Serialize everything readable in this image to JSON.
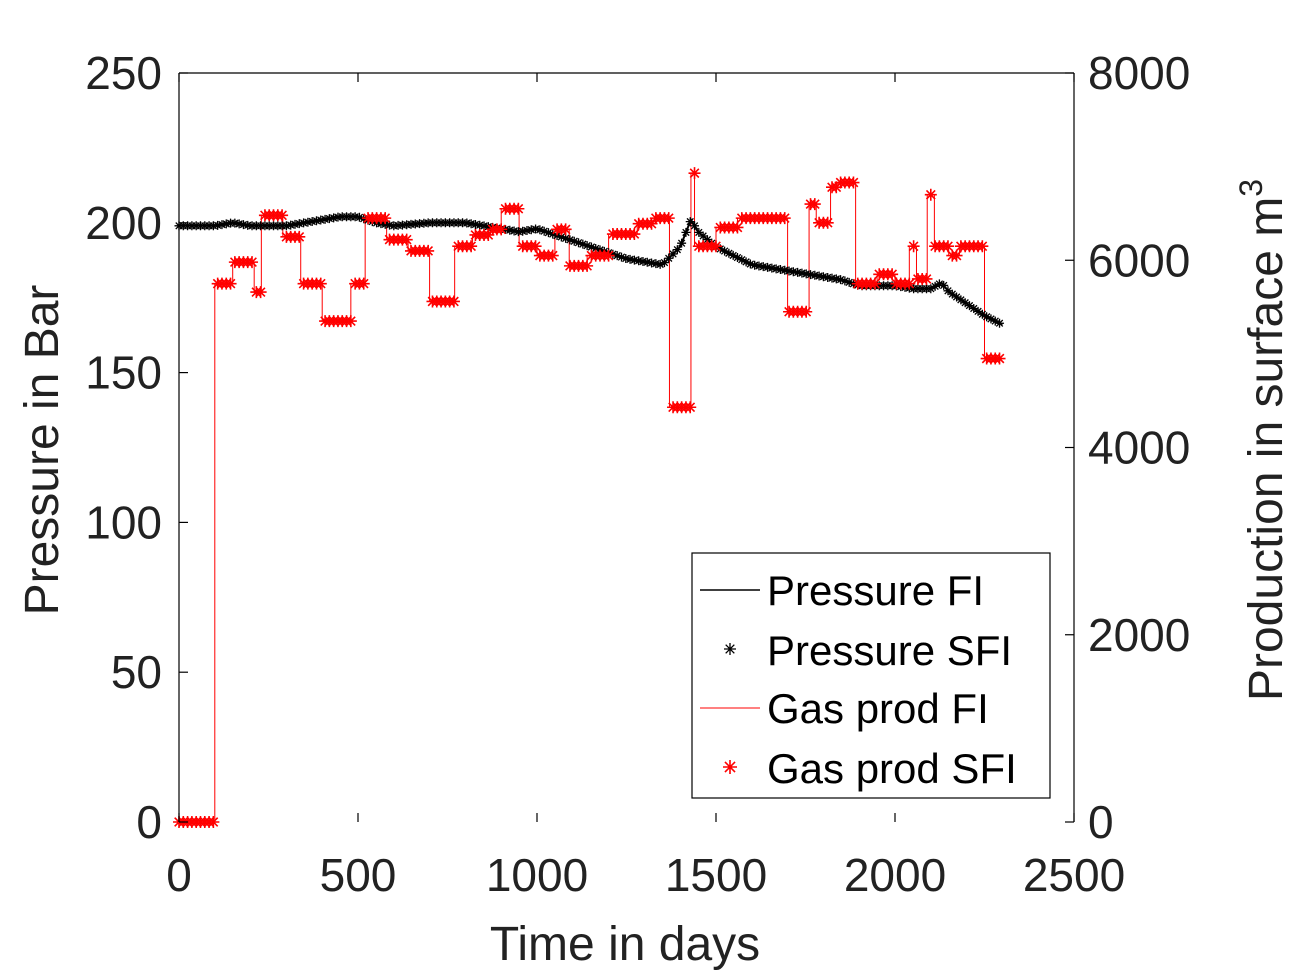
{
  "chart_data": {
    "type": "line",
    "title": "",
    "xlabel": "Time in days",
    "ylabel_left": "Pressure in Bar",
    "ylabel_right": "Production in surface m",
    "ylabel_right_superscript": "3",
    "xlim": [
      0,
      2500
    ],
    "ylim_left": [
      0,
      250
    ],
    "ylim_right": [
      0,
      8000
    ],
    "xticks": [
      0,
      500,
      1000,
      1500,
      2000,
      2500
    ],
    "yticks_left": [
      0,
      50,
      100,
      150,
      200,
      250
    ],
    "yticks_right": [
      0,
      2000,
      4000,
      6000,
      8000
    ],
    "grid": false,
    "legend_position": "bottom-right",
    "colors": {
      "pressure": "#000000",
      "gas": "#ff0000",
      "axis": "#000000",
      "text": "#222222"
    },
    "series": [
      {
        "name": "Pressure FI",
        "axis": "left",
        "style": "line",
        "x": [
          0,
          100,
          150,
          200,
          300,
          400,
          450,
          500,
          550,
          600,
          700,
          800,
          900,
          950,
          1000,
          1100,
          1200,
          1250,
          1300,
          1350,
          1400,
          1420,
          1430,
          1450,
          1500,
          1550,
          1600,
          1700,
          1800,
          1850,
          1900,
          2000,
          2050,
          2100,
          2130,
          2150,
          2200,
          2250,
          2300
        ],
        "y": [
          199,
          199,
          200,
          199,
          199,
          201,
          202,
          202,
          200,
          199,
          200,
          200,
          198,
          197,
          198,
          194,
          190,
          188,
          187,
          186,
          192,
          198,
          201,
          197,
          192,
          189,
          186,
          184,
          182,
          181,
          179,
          179,
          178,
          178,
          180,
          177,
          173,
          169,
          166
        ]
      },
      {
        "name": "Pressure SFI",
        "axis": "left",
        "style": "markers",
        "marker": "*",
        "x": [
          0,
          100,
          150,
          200,
          300,
          400,
          450,
          500,
          550,
          600,
          700,
          800,
          900,
          950,
          1000,
          1100,
          1200,
          1250,
          1300,
          1350,
          1400,
          1420,
          1430,
          1450,
          1500,
          1550,
          1600,
          1700,
          1800,
          1850,
          1900,
          2000,
          2050,
          2100,
          2130,
          2150,
          2200,
          2250,
          2300
        ],
        "y": [
          199,
          199,
          200,
          199,
          199,
          201,
          202,
          202,
          200,
          199,
          200,
          200,
          198,
          197,
          198,
          194,
          190,
          188,
          187,
          186,
          192,
          198,
          201,
          197,
          192,
          189,
          186,
          184,
          182,
          181,
          179,
          179,
          178,
          178,
          180,
          177,
          173,
          169,
          166
        ],
        "marker_step_days": 12
      },
      {
        "name": "Gas prod FI",
        "axis": "right",
        "style": "step-line",
        "x": [
          0,
          85,
          100,
          130,
          150,
          210,
          230,
          290,
          340,
          400,
          480,
          520,
          580,
          640,
          700,
          770,
          820,
          870,
          900,
          950,
          1000,
          1050,
          1090,
          1140,
          1200,
          1280,
          1330,
          1370,
          1430,
          1440,
          1500,
          1560,
          1700,
          1760,
          1780,
          1820,
          1840,
          1890,
          1950,
          2000,
          2040,
          2060,
          2090,
          2110,
          2150,
          2180,
          2250,
          2290
        ],
        "y": [
          0,
          0,
          5750,
          5750,
          5980,
          5660,
          6480,
          6250,
          5750,
          5350,
          5750,
          6450,
          6220,
          6100,
          5560,
          6150,
          6270,
          6330,
          6550,
          6150,
          6050,
          6330,
          5940,
          6050,
          6280,
          6390,
          6450,
          4430,
          6930,
          6150,
          6350,
          6450,
          5450,
          6600,
          6400,
          6780,
          6830,
          5750,
          5850,
          5750,
          6150,
          5800,
          6700,
          6150,
          6050,
          6150,
          4950,
          4950
        ]
      },
      {
        "name": "Gas prod SFI",
        "axis": "right",
        "style": "markers",
        "marker": "*",
        "x": [
          0,
          85,
          100,
          130,
          150,
          210,
          230,
          290,
          340,
          400,
          480,
          520,
          580,
          640,
          700,
          770,
          820,
          870,
          900,
          950,
          1000,
          1050,
          1090,
          1140,
          1200,
          1280,
          1330,
          1370,
          1430,
          1440,
          1500,
          1560,
          1700,
          1760,
          1780,
          1820,
          1840,
          1890,
          1950,
          2000,
          2040,
          2060,
          2090,
          2110,
          2150,
          2180,
          2250,
          2290
        ],
        "y": [
          0,
          0,
          5750,
          5750,
          5980,
          5660,
          6480,
          6250,
          5750,
          5350,
          5750,
          6450,
          6220,
          6100,
          5560,
          6150,
          6270,
          6330,
          6550,
          6150,
          6050,
          6330,
          5940,
          6050,
          6280,
          6390,
          6450,
          4430,
          6930,
          6150,
          6350,
          6450,
          5450,
          6600,
          6400,
          6780,
          6830,
          5750,
          5850,
          5750,
          6150,
          5800,
          6700,
          6150,
          6050,
          6150,
          4950,
          4950
        ],
        "marker_step_days": 12
      }
    ]
  }
}
